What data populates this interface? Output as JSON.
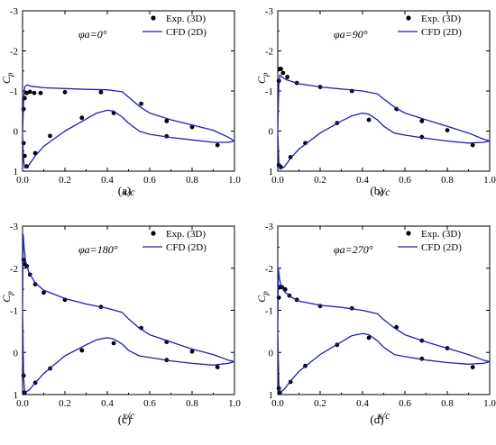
{
  "legend": {
    "exp_label": "Exp. (3D)",
    "cfd_label": "CFD (2D)"
  },
  "colors": {
    "cfd_line": "#1f1fb4",
    "exp_marker": "#000000",
    "axis": "#000000"
  },
  "axes": {
    "xlabel": "x/c",
    "ylabel": "C",
    "ylabel_sub": "p",
    "xlim": [
      0.0,
      1.0
    ],
    "ylim": [
      1,
      -3
    ],
    "y_inverted": true,
    "xticks": [
      "0.0",
      "0.2",
      "0.4",
      "0.6",
      "0.8",
      "1.0"
    ],
    "yticks": [
      "-3",
      "-2",
      "-1",
      "0",
      "1"
    ]
  },
  "chart_data": [
    {
      "type": "line",
      "panel_label": "(a)",
      "annotation": "φa=0°",
      "series": [
        {
          "name": "Exp. (3D)",
          "kind": "scatter",
          "x": [
            0.005,
            0.01,
            0.02,
            0.035,
            0.055,
            0.085,
            0.2,
            0.37,
            0.56,
            0.005,
            0.01,
            0.02,
            0.06,
            0.13,
            0.28,
            0.43,
            0.68,
            0.8,
            0.92,
            0.68
          ],
          "y": [
            -0.55,
            -0.82,
            -0.95,
            -0.98,
            -0.95,
            -0.95,
            -0.97,
            -0.97,
            -0.68,
            0.3,
            0.62,
            0.88,
            0.55,
            0.12,
            -0.33,
            -0.45,
            -0.25,
            -0.1,
            0.35,
            0.13
          ]
        },
        {
          "name": "CFD (2D)",
          "kind": "upper",
          "x": [
            0.0,
            0.005,
            0.01,
            0.02,
            0.04,
            0.1,
            0.2,
            0.3,
            0.4,
            0.47,
            0.5,
            0.55,
            0.6,
            0.7,
            0.8,
            0.9,
            0.97,
            1.0
          ],
          "y": [
            0.1,
            -0.8,
            -1.1,
            -1.15,
            -1.12,
            -1.08,
            -1.06,
            -1.04,
            -1.03,
            -0.98,
            -0.85,
            -0.62,
            -0.45,
            -0.28,
            -0.15,
            -0.02,
            0.15,
            0.25
          ]
        },
        {
          "name": "CFD (2D)",
          "kind": "lower",
          "x": [
            0.0,
            0.005,
            0.01,
            0.03,
            0.06,
            0.1,
            0.2,
            0.3,
            0.35,
            0.4,
            0.43,
            0.47,
            0.5,
            0.55,
            0.6,
            0.7,
            0.8,
            0.9,
            0.97,
            1.0
          ],
          "y": [
            0.1,
            0.75,
            0.92,
            0.85,
            0.62,
            0.38,
            0.0,
            -0.3,
            -0.45,
            -0.52,
            -0.5,
            -0.35,
            -0.2,
            0.0,
            0.08,
            0.16,
            0.22,
            0.28,
            0.28,
            0.25
          ]
        }
      ]
    },
    {
      "type": "line",
      "panel_label": "(b)",
      "annotation": "φa=90°",
      "series": [
        {
          "name": "Exp. (3D)",
          "kind": "scatter",
          "x": [
            0.005,
            0.01,
            0.015,
            0.025,
            0.045,
            0.09,
            0.2,
            0.35,
            0.56,
            0.005,
            0.015,
            0.06,
            0.13,
            0.28,
            0.43,
            0.68,
            0.8,
            0.92,
            0.68
          ],
          "y": [
            -1.25,
            -1.55,
            -1.55,
            -1.45,
            -1.35,
            -1.2,
            -1.1,
            -1.0,
            -0.55,
            0.85,
            0.9,
            0.65,
            0.3,
            -0.2,
            -0.28,
            -0.25,
            -0.02,
            0.35,
            0.15
          ]
        },
        {
          "name": "CFD (2D)",
          "kind": "upper",
          "x": [
            0.0,
            0.005,
            0.01,
            0.02,
            0.04,
            0.1,
            0.2,
            0.3,
            0.4,
            0.47,
            0.5,
            0.55,
            0.6,
            0.7,
            0.8,
            0.9,
            0.97,
            1.0
          ],
          "y": [
            0.0,
            -1.2,
            -1.4,
            -1.35,
            -1.28,
            -1.18,
            -1.1,
            -1.05,
            -1.0,
            -0.93,
            -0.8,
            -0.6,
            -0.45,
            -0.28,
            -0.12,
            0.05,
            0.2,
            0.25
          ]
        },
        {
          "name": "CFD (2D)",
          "kind": "lower",
          "x": [
            0.0,
            0.005,
            0.01,
            0.03,
            0.06,
            0.1,
            0.2,
            0.3,
            0.35,
            0.4,
            0.43,
            0.47,
            0.5,
            0.55,
            0.6,
            0.7,
            0.8,
            0.9,
            0.97,
            1.0
          ],
          "y": [
            0.0,
            0.8,
            0.95,
            0.9,
            0.68,
            0.45,
            0.05,
            -0.25,
            -0.38,
            -0.45,
            -0.42,
            -0.28,
            -0.12,
            0.05,
            0.1,
            0.18,
            0.25,
            0.3,
            0.28,
            0.25
          ]
        }
      ]
    },
    {
      "type": "line",
      "panel_label": "(c)",
      "annotation": "φa=180°",
      "series": [
        {
          "name": "Exp. (3D)",
          "kind": "scatter",
          "x": [
            0.005,
            0.01,
            0.02,
            0.035,
            0.06,
            0.1,
            0.2,
            0.37,
            0.56,
            0.005,
            0.01,
            0.06,
            0.13,
            0.28,
            0.43,
            0.68,
            0.8,
            0.92,
            0.68
          ],
          "y": [
            -2.2,
            -2.1,
            -2.05,
            -1.85,
            -1.62,
            -1.42,
            -1.25,
            -1.08,
            -0.58,
            0.55,
            0.95,
            0.72,
            0.38,
            -0.05,
            -0.22,
            -0.25,
            -0.02,
            0.35,
            0.18
          ]
        },
        {
          "name": "CFD (2D)",
          "kind": "upper",
          "x": [
            0.0,
            0.003,
            0.008,
            0.015,
            0.03,
            0.06,
            0.1,
            0.2,
            0.3,
            0.4,
            0.47,
            0.5,
            0.55,
            0.6,
            0.7,
            0.8,
            0.9,
            0.97,
            1.0
          ],
          "y": [
            -1.0,
            -2.8,
            -2.45,
            -2.15,
            -1.9,
            -1.65,
            -1.48,
            -1.28,
            -1.15,
            -1.05,
            -0.95,
            -0.8,
            -0.58,
            -0.42,
            -0.25,
            -0.08,
            0.05,
            0.18,
            0.22
          ]
        },
        {
          "name": "CFD (2D)",
          "kind": "lower",
          "x": [
            0.0,
            0.005,
            0.01,
            0.03,
            0.06,
            0.1,
            0.2,
            0.3,
            0.35,
            0.4,
            0.43,
            0.47,
            0.5,
            0.55,
            0.6,
            0.7,
            0.8,
            0.9,
            0.97,
            1.0
          ],
          "y": [
            -1.0,
            0.6,
            0.95,
            0.9,
            0.72,
            0.5,
            0.08,
            -0.18,
            -0.3,
            -0.35,
            -0.32,
            -0.2,
            -0.05,
            0.08,
            0.12,
            0.2,
            0.26,
            0.3,
            0.26,
            0.22
          ]
        }
      ]
    },
    {
      "type": "line",
      "panel_label": "(d)",
      "annotation": "φa=270°",
      "series": [
        {
          "name": "Exp. (3D)",
          "kind": "scatter",
          "x": [
            0.005,
            0.01,
            0.02,
            0.035,
            0.055,
            0.09,
            0.2,
            0.35,
            0.56,
            0.005,
            0.01,
            0.06,
            0.13,
            0.28,
            0.43,
            0.68,
            0.8,
            0.92,
            0.68
          ],
          "y": [
            -1.3,
            -1.55,
            -1.55,
            -1.5,
            -1.35,
            -1.25,
            -1.1,
            -1.05,
            -0.6,
            0.85,
            0.95,
            0.7,
            0.32,
            -0.18,
            -0.35,
            -0.28,
            -0.1,
            0.35,
            0.15
          ]
        },
        {
          "name": "CFD (2D)",
          "kind": "upper",
          "x": [
            0.0,
            0.003,
            0.008,
            0.015,
            0.03,
            0.06,
            0.1,
            0.2,
            0.3,
            0.4,
            0.47,
            0.5,
            0.55,
            0.6,
            0.7,
            0.8,
            0.9,
            0.97,
            1.0
          ],
          "y": [
            -0.5,
            -2.0,
            -1.75,
            -1.6,
            -1.45,
            -1.32,
            -1.22,
            -1.12,
            -1.07,
            -1.0,
            -0.92,
            -0.78,
            -0.58,
            -0.42,
            -0.25,
            -0.1,
            0.05,
            0.18,
            0.22
          ]
        },
        {
          "name": "CFD (2D)",
          "kind": "lower",
          "x": [
            0.0,
            0.005,
            0.01,
            0.03,
            0.06,
            0.1,
            0.2,
            0.3,
            0.35,
            0.4,
            0.43,
            0.47,
            0.5,
            0.55,
            0.6,
            0.7,
            0.8,
            0.9,
            0.97,
            1.0
          ],
          "y": [
            -0.5,
            0.75,
            0.95,
            0.88,
            0.68,
            0.45,
            0.05,
            -0.25,
            -0.4,
            -0.45,
            -0.42,
            -0.28,
            -0.12,
            0.05,
            0.1,
            0.18,
            0.24,
            0.28,
            0.26,
            0.22
          ]
        }
      ]
    }
  ]
}
